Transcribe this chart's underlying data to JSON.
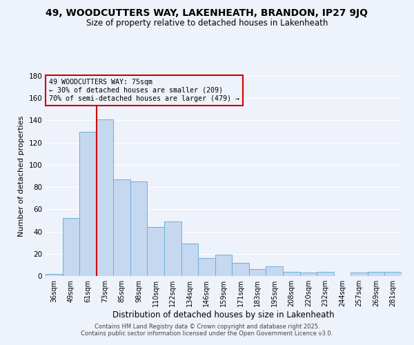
{
  "title": "49, WOODCUTTERS WAY, LAKENHEATH, BRANDON, IP27 9JQ",
  "subtitle": "Size of property relative to detached houses in Lakenheath",
  "xlabel": "Distribution of detached houses by size in Lakenheath",
  "ylabel": "Number of detached properties",
  "categories": [
    "36sqm",
    "49sqm",
    "61sqm",
    "73sqm",
    "85sqm",
    "98sqm",
    "110sqm",
    "122sqm",
    "134sqm",
    "146sqm",
    "159sqm",
    "171sqm",
    "183sqm",
    "195sqm",
    "208sqm",
    "220sqm",
    "232sqm",
    "244sqm",
    "257sqm",
    "269sqm",
    "281sqm"
  ],
  "values": [
    2,
    52,
    130,
    141,
    87,
    85,
    44,
    49,
    29,
    16,
    19,
    12,
    6,
    9,
    4,
    3,
    4,
    0,
    3,
    4,
    4
  ],
  "bar_color": "#c5d8f0",
  "bar_edge_color": "#6baed6",
  "vline_x_idx": 3,
  "vline_color": "#cc0000",
  "ylim": [
    0,
    180
  ],
  "yticks": [
    0,
    20,
    40,
    60,
    80,
    100,
    120,
    140,
    160,
    180
  ],
  "annotation_title": "49 WOODCUTTERS WAY: 75sqm",
  "annotation_line1": "← 30% of detached houses are smaller (209)",
  "annotation_line2": "70% of semi-detached houses are larger (479) →",
  "annotation_box_color": "#cc0000",
  "background_color": "#eef2fa",
  "footer1": "Contains HM Land Registry data © Crown copyright and database right 2025.",
  "footer2": "Contains public sector information licensed under the Open Government Licence v3.0.",
  "title_fontsize": 10,
  "subtitle_fontsize": 8.5,
  "xlabel_fontsize": 8.5,
  "ylabel_fontsize": 8
}
